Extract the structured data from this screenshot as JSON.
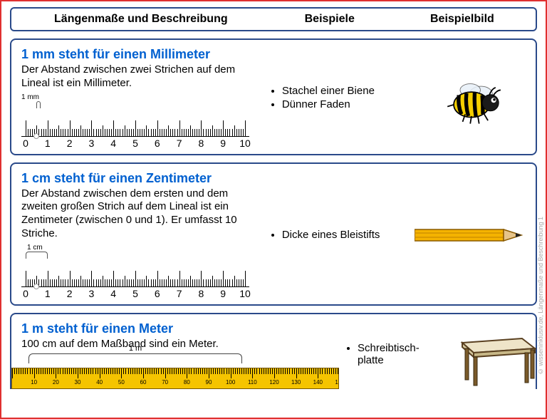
{
  "header": {
    "col1": "Längenmaße und Beschreibung",
    "col2": "Beispiele",
    "col3": "Beispielbild"
  },
  "rows": [
    {
      "title": "1 mm steht für einen Millimeter",
      "desc": "Der Abstand zwischen zwei Strichen auf dem Lineal ist ein Millimeter.",
      "unit_label": "1 mm",
      "examples": [
        "Stachel einer Biene",
        "Dünner Faden"
      ],
      "image": "bee",
      "ruler": {
        "max": 10,
        "bracket_from": 0.5,
        "bracket_to": 0.6
      }
    },
    {
      "title": "1 cm steht für einen Zentimeter",
      "desc": "Der Abstand zwischen dem ersten und dem zweiten großen Strich auf dem Lineal ist ein Zentimeter (zwischen 0 und 1). Er umfasst 10 Striche.",
      "unit_label": "1 cm",
      "examples": [
        "Dicke eines Bleistifts"
      ],
      "image": "pencil",
      "ruler": {
        "max": 10,
        "bracket_from": 0,
        "bracket_to": 1
      }
    },
    {
      "title": "1 m steht für einen Meter",
      "desc": "100 cm auf dem Maßband sind ein Meter.",
      "unit_label": "1 m",
      "examples": [
        "Schreibtisch-platte"
      ],
      "image": "table",
      "tape": true
    }
  ],
  "colors": {
    "title": "#0060d0",
    "border": "#2a4a8a",
    "outer_border": "#e03030",
    "tape": "#f5c400",
    "pencil_body": "#f5b300",
    "pencil_tip": "#e6c48a",
    "bee_body": "#f5cf00",
    "table_top": "#eee4c8",
    "table_leg": "#7a5a2a"
  },
  "watermark": "© wisseninklusiv.de, Längenmaße und Beschreibung 1"
}
